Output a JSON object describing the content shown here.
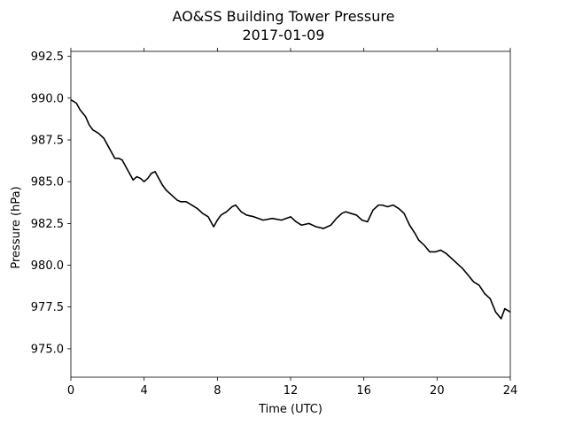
{
  "chart_data": {
    "type": "line",
    "title": "AO&SS Building Tower Pressure",
    "subtitle": "2017-01-09",
    "xlabel": "Time (UTC)",
    "ylabel": "Pressure (hPa)",
    "xlim": [
      0,
      24
    ],
    "ylim": [
      973.3,
      992.8
    ],
    "xticks": [
      0,
      4,
      8,
      12,
      16,
      20,
      24
    ],
    "xtick_labels": [
      "0",
      "4",
      "8",
      "12",
      "16",
      "20",
      "24"
    ],
    "yticks": [
      975.0,
      977.5,
      980.0,
      982.5,
      985.0,
      987.5,
      990.0,
      992.5
    ],
    "ytick_labels": [
      "975.0",
      "977.5",
      "980.0",
      "982.5",
      "985.0",
      "987.5",
      "990.0",
      "992.5"
    ],
    "grid": false,
    "line_color": "#000000",
    "series": [
      {
        "x": [
          0,
          0.3,
          0.5,
          0.8,
          1.0,
          1.2,
          1.5,
          1.8,
          2.0,
          2.2,
          2.4,
          2.6,
          2.8,
          3.0,
          3.2,
          3.4,
          3.6,
          3.8,
          4.0,
          4.2,
          4.4,
          4.6,
          4.8,
          5.0,
          5.2,
          5.4,
          5.6,
          5.8,
          6.0,
          6.3,
          6.6,
          6.9,
          7.2,
          7.5,
          7.8,
          8.0,
          8.2,
          8.5,
          8.8,
          9.0,
          9.3,
          9.6,
          10.0,
          10.5,
          11.0,
          11.5,
          12.0,
          12.3,
          12.6,
          13.0,
          13.4,
          13.8,
          14.2,
          14.5,
          14.8,
          15.0,
          15.3,
          15.6,
          15.9,
          16.2,
          16.5,
          16.8,
          17.0,
          17.3,
          17.6,
          17.9,
          18.2,
          18.5,
          18.8,
          19.0,
          19.3,
          19.6,
          19.9,
          20.2,
          20.5,
          20.8,
          21.1,
          21.4,
          21.7,
          22.0,
          22.3,
          22.6,
          22.9,
          23.2,
          23.5,
          23.7,
          24.0
        ],
        "y": [
          989.9,
          989.7,
          989.3,
          988.9,
          988.4,
          988.1,
          987.9,
          987.6,
          987.2,
          986.8,
          986.4,
          986.4,
          986.3,
          985.9,
          985.5,
          985.1,
          985.3,
          985.2,
          985.0,
          985.2,
          985.5,
          985.6,
          985.2,
          984.8,
          984.5,
          984.3,
          984.1,
          983.9,
          983.8,
          983.8,
          983.6,
          983.4,
          983.1,
          982.9,
          982.3,
          982.7,
          983.0,
          983.2,
          983.5,
          983.6,
          983.2,
          983.0,
          982.9,
          982.7,
          982.8,
          982.7,
          982.9,
          982.6,
          982.4,
          982.5,
          982.3,
          982.2,
          982.4,
          982.8,
          983.1,
          983.2,
          983.1,
          983.0,
          982.7,
          982.6,
          983.3,
          983.6,
          983.6,
          983.5,
          983.6,
          983.4,
          983.1,
          982.4,
          981.9,
          981.5,
          981.2,
          980.8,
          980.8,
          980.9,
          980.7,
          980.4,
          980.1,
          979.8,
          979.4,
          979.0,
          978.8,
          978.3,
          978.0,
          977.2,
          976.8,
          977.4,
          977.2
        ]
      }
    ]
  }
}
